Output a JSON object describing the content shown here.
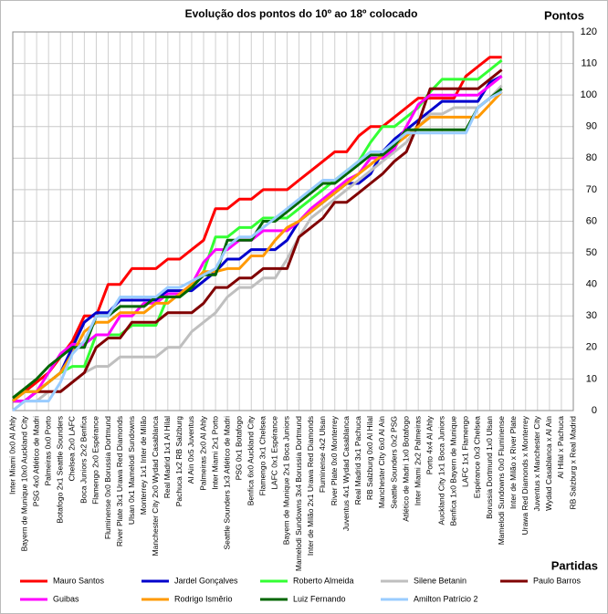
{
  "chart_data": {
    "type": "line",
    "title": "Evolução dos pontos do 10º ao 18º colocado",
    "y_label": "Pontos",
    "x_label": "Partidas",
    "grid": true,
    "legend": "bottom",
    "ylim": [
      0,
      120
    ],
    "yticks": [
      0,
      10,
      20,
      30,
      40,
      50,
      60,
      70,
      80,
      90,
      100,
      110,
      120
    ],
    "categories": [
      "Inter Miami 0x0 Al Ahly",
      "Bayern de Munique 10x0 Auckland City",
      "PSG 4x0 Atlético de Madri",
      "Palmeiras 0x0 Porto",
      "Botafogo 2x1 Seattle Sounders",
      "Chelsea 2x0 LAFC",
      "Boca Juniors 2x2 Benfica",
      "Flamengo 2x0 Espérance",
      "Fluminense 0x0 Borussia Dortmund",
      "River Plate 3x1 Urawa Red Diamonds",
      "Ulsan 0x1 Mamelodi Sundowns",
      "Monterrey 1x1 Inter de Milão",
      "Manchester City 2x0 Wydad Casablanca",
      "Real Madrid 1x1 Al Hilal",
      "Pachuca 1x2 RB Salzburg",
      "Al Ain 0x5 Juventus",
      "Palmeiras 2x0 Al Ahly",
      "Inter Miami 2x1 Porto",
      "Seattle Sounders 1x3 Atlético de Madri",
      "PSG 0x1 Botafogo",
      "Benfica 6x0 Auckland City",
      "Flamengo 3x1 Chelsea",
      "LAFC 0x1 Espérance",
      "Bayern de Munique 2x1 Boca Juniors",
      "Mamelodi Sundowns 3x4 Borussia Dortmund",
      "Inter de Milão 2x1 Urawa Red Diamonds",
      "Fluminense 4x2 Ulsan",
      "River Plate 0x0 Monterrey",
      "Juventus 4x1 Wydad Casablanca",
      "Real Madrid 3x1 Pachuca",
      "RB Salzburg 0x0 Al Hilal",
      "Manchester City 6x0 Al Ain",
      "Seattle Sounders 0x2 PSG",
      "Atlético de Madri 1x0 Botafogo",
      "Inter Miami 2x2 Palmeiras",
      "Porto 4x4 Al Ahly",
      "Auckland City 1x1 Boca Juniors",
      "Benfica 1x0 Bayern de Munique",
      "LAFC 1x1 Flamengo",
      "Espérance 0x3 Chelsea",
      "Borussia Dortmund 1x0 Ulsan",
      "Mamelodi Sundowns 0x0 Fluminense",
      "Inter de Milão x River Plate",
      "Urawa Red Diamonds x Monterrey",
      "Juventus x Manchester City",
      "Wydad Casablanca x Al Ain",
      "Al Hilal x Pachuca",
      "RB Salzburg x Real Madrid"
    ],
    "series": [
      {
        "name": "Mauro Santos",
        "color": "#ff0000",
        "values": [
          3,
          6,
          9,
          12,
          17,
          22,
          30,
          30,
          40,
          40,
          45,
          45,
          45,
          48,
          48,
          51,
          54,
          64,
          64,
          67,
          67,
          70,
          70,
          70,
          73,
          76,
          79,
          82,
          82,
          87,
          90,
          90,
          93,
          96,
          99,
          99,
          99,
          99,
          106,
          109,
          112,
          112,
          null,
          null,
          null,
          null,
          null,
          null
        ]
      },
      {
        "name": "Jardel Gonçalves",
        "color": "#0000cc",
        "values": [
          3,
          3,
          6,
          9,
          12,
          20,
          28,
          31,
          31,
          35,
          35,
          35,
          35,
          38,
          38,
          38,
          41,
          44,
          48,
          48,
          51,
          51,
          51,
          54,
          60,
          63,
          66,
          69,
          72,
          72,
          75,
          82,
          86,
          89,
          92,
          95,
          98,
          98,
          98,
          98,
          104,
          106,
          null,
          null,
          null,
          null,
          null,
          null
        ]
      },
      {
        "name": "Roberto Almeida",
        "color": "#33ff33",
        "values": [
          3,
          6,
          6,
          9,
          12,
          14,
          14,
          24,
          24,
          24,
          27,
          27,
          27,
          36,
          36,
          39,
          44,
          55,
          55,
          58,
          58,
          61,
          61,
          61,
          64,
          67,
          70,
          73,
          76,
          79,
          85,
          90,
          90,
          93,
          96,
          101,
          105,
          105,
          105,
          105,
          108,
          111,
          null,
          null,
          null,
          null,
          null,
          null
        ]
      },
      {
        "name": "Silene Betanin",
        "color": "#bfbfbf",
        "values": [
          0,
          3,
          3,
          6,
          6,
          9,
          12,
          14,
          14,
          17,
          17,
          17,
          17,
          20,
          20,
          25,
          28,
          31,
          36,
          39,
          39,
          42,
          42,
          48,
          55,
          61,
          64,
          67,
          70,
          73,
          76,
          79,
          82,
          85,
          90,
          94,
          94,
          96,
          96,
          96,
          99,
          103,
          null,
          null,
          null,
          null,
          null,
          null
        ]
      },
      {
        "name": "Paulo Barros",
        "color": "#800000",
        "values": [
          3,
          3,
          6,
          6,
          6,
          9,
          12,
          20,
          23,
          23,
          28,
          28,
          28,
          31,
          31,
          31,
          34,
          39,
          39,
          42,
          42,
          45,
          45,
          45,
          55,
          58,
          61,
          66,
          66,
          69,
          72,
          75,
          79,
          82,
          91,
          102,
          102,
          102,
          102,
          102,
          105,
          108,
          null,
          null,
          null,
          null,
          null,
          null
        ]
      },
      {
        "name": "Guibas",
        "color": "#ff00ff",
        "values": [
          3,
          3,
          6,
          12,
          18,
          21,
          21,
          24,
          24,
          30,
          30,
          34,
          34,
          37,
          37,
          40,
          47,
          51,
          51,
          54,
          54,
          57,
          57,
          57,
          60,
          64,
          67,
          70,
          73,
          75,
          80,
          80,
          83,
          90,
          97,
          100,
          100,
          100,
          100,
          100,
          103,
          106,
          null,
          null,
          null,
          null,
          null,
          null
        ]
      },
      {
        "name": "Rodrigo Isměrio",
        "color": "#ff9900",
        "values": [
          3,
          6,
          6,
          9,
          12,
          18,
          25,
          28,
          28,
          31,
          31,
          31,
          34,
          34,
          37,
          40,
          44,
          44,
          45,
          45,
          49,
          49,
          54,
          58,
          60,
          63,
          66,
          69,
          72,
          75,
          78,
          81,
          84,
          87,
          90,
          93,
          93,
          93,
          93,
          93,
          97,
          101,
          null,
          null,
          null,
          null,
          null,
          null
        ]
      },
      {
        "name": "Luiz Fernando",
        "color": "#006600",
        "values": [
          4,
          7,
          10,
          14,
          17,
          20,
          20,
          30,
          30,
          33,
          33,
          33,
          36,
          36,
          36,
          39,
          43,
          43,
          54,
          54,
          54,
          60,
          60,
          63,
          66,
          69,
          72,
          72,
          75,
          78,
          81,
          81,
          84,
          89,
          89,
          89,
          89,
          89,
          89,
          96,
          99,
          102,
          null,
          null,
          null,
          null,
          null,
          null
        ]
      },
      {
        "name": "Amilton Patrício 2",
        "color": "#99ccff",
        "values": [
          0,
          3,
          3,
          3,
          9,
          18,
          22,
          30,
          30,
          36,
          36,
          36,
          36,
          39,
          39,
          41,
          43,
          45,
          52,
          55,
          55,
          58,
          61,
          64,
          67,
          70,
          73,
          73,
          76,
          79,
          82,
          82,
          85,
          88,
          88,
          88,
          88,
          88,
          88,
          96,
          99,
          101,
          null,
          null,
          null,
          null,
          null,
          null
        ]
      }
    ]
  }
}
